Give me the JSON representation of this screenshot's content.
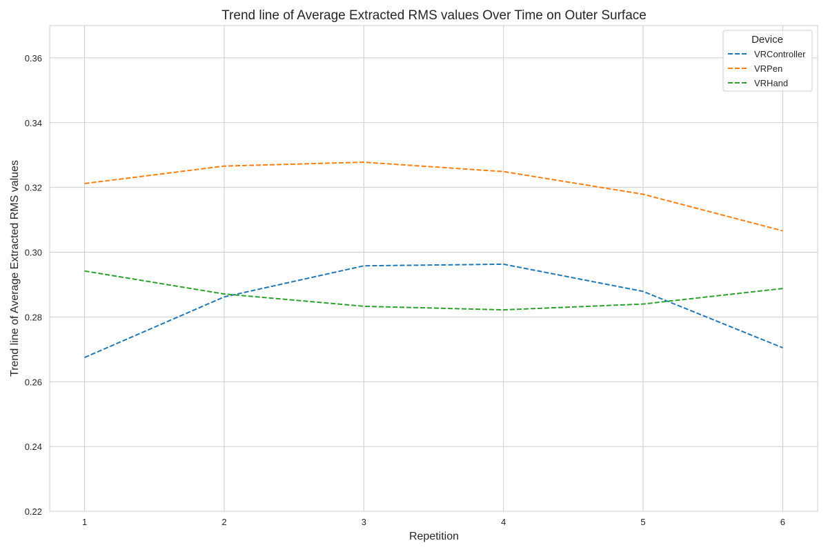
{
  "chart_data": {
    "type": "line",
    "title": "Trend line of Average Extracted RMS values Over Time on Outer Surface",
    "xlabel": "Repetition",
    "ylabel": "Trend line of Average Extracted RMS values",
    "x": [
      1,
      2,
      3,
      4,
      5,
      6
    ],
    "x_tick_labels": [
      "1",
      "2",
      "3",
      "4",
      "5",
      "6"
    ],
    "xlim": [
      0.75,
      6.25
    ],
    "ylim": [
      0.22,
      0.37
    ],
    "y_ticks": [
      0.22,
      0.24,
      0.26,
      0.28,
      0.3,
      0.32,
      0.34,
      0.36
    ],
    "y_tick_labels": [
      "0.22",
      "0.24",
      "0.26",
      "0.28",
      "0.30",
      "0.32",
      "0.34",
      "0.36"
    ],
    "grid": true,
    "line_style": "dashed",
    "legend": {
      "title": "Device",
      "position": "top-right"
    },
    "series": [
      {
        "name": "VRController",
        "color": "#1f77b4",
        "values": [
          0.2675,
          0.2862,
          0.2958,
          0.2963,
          0.2879,
          0.2705
        ]
      },
      {
        "name": "VRPen",
        "color": "#ff7f0e",
        "values": [
          0.3212,
          0.3266,
          0.3278,
          0.3249,
          0.3179,
          0.3066
        ]
      },
      {
        "name": "VRHand",
        "color": "#2ca02c",
        "values": [
          0.2942,
          0.2871,
          0.2833,
          0.2822,
          0.284,
          0.2888
        ]
      }
    ]
  }
}
